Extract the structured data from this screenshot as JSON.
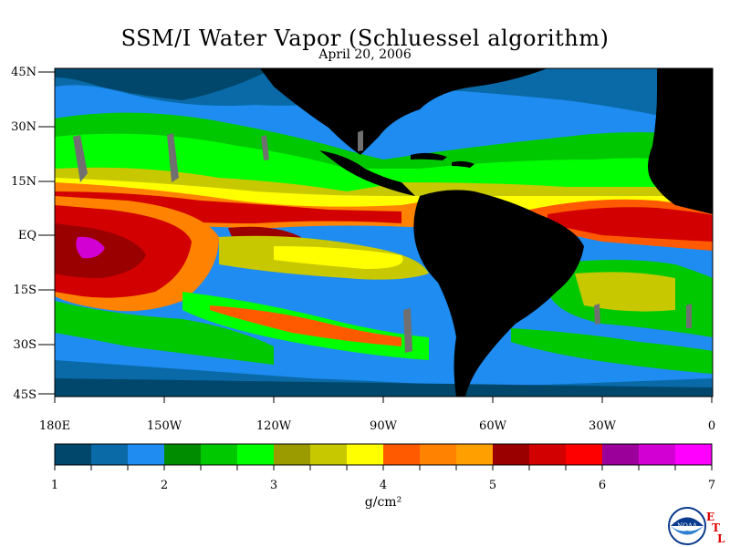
{
  "title": "SSM/I Water Vapor (Schluessel algorithm)",
  "date": "April 20, 2006",
  "map": {
    "lat_labels": [
      "45N",
      "30N",
      "15N",
      "EQ",
      "15S",
      "30S",
      "45S"
    ],
    "lon_labels": [
      "180E",
      "150W",
      "120W",
      "90W",
      "60W",
      "30W",
      "0"
    ],
    "lat_range_deg": [
      -45,
      45
    ],
    "lon_range_deg": [
      -180,
      0
    ],
    "land_color": "#000000",
    "missing_data_color": "#707070",
    "projection": "cylindrical equidistant"
  },
  "colorbar": {
    "unit": "g/cm²",
    "range": [
      1,
      7
    ],
    "tick_labels": [
      "1",
      "2",
      "3",
      "4",
      "5",
      "6",
      "7"
    ],
    "bin_width": 0.333,
    "colors": [
      "#00476b",
      "#0a6aa8",
      "#1e8cf0",
      "#008c00",
      "#00c800",
      "#00ff00",
      "#9b9b00",
      "#c8c800",
      "#ffff00",
      "#ff5a00",
      "#ff8200",
      "#ff9f00",
      "#9b0000",
      "#d20000",
      "#ff0000",
      "#9b009b",
      "#d200d2",
      "#ff00ff"
    ]
  },
  "logo": {
    "name": "noaa-logo",
    "text": "NOAA",
    "etl_letters": [
      "E",
      "T",
      "L"
    ]
  }
}
